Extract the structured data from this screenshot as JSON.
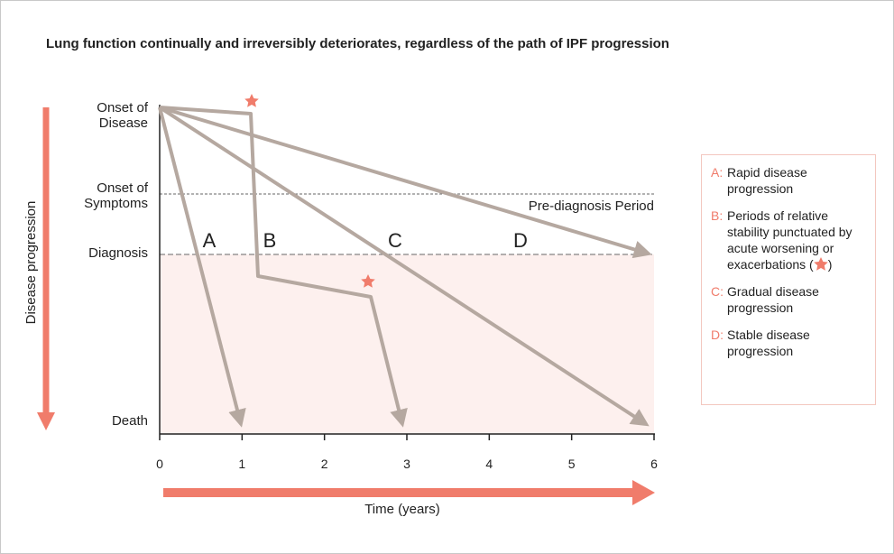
{
  "title": "Lung function continually and irreversibly deteriorates, regardless of the path of IPF progression",
  "y_axis": {
    "title": "Disease progression",
    "levels": [
      [
        "Onset of",
        "Disease"
      ],
      [
        "Onset of",
        "Symptoms"
      ],
      [
        "Diagnosis"
      ],
      [
        "Death"
      ]
    ]
  },
  "x_axis": {
    "title": "Time (years)",
    "ticks": [
      "0",
      "1",
      "2",
      "3",
      "4",
      "5",
      "6"
    ]
  },
  "region_label": "Pre-diagnosis Period",
  "path_labels": [
    "A",
    "B",
    "C",
    "D"
  ],
  "legend": [
    {
      "key": "A:",
      "text": "Rapid disease progression"
    },
    {
      "key": "B:",
      "text": "Periods of relative stability punctuated by acute worsening or exacerbations (",
      "text_end": ")"
    },
    {
      "key": "C:",
      "text": "Gradual disease progression"
    },
    {
      "key": "D:",
      "text": "Stable disease progression"
    }
  ]
}
